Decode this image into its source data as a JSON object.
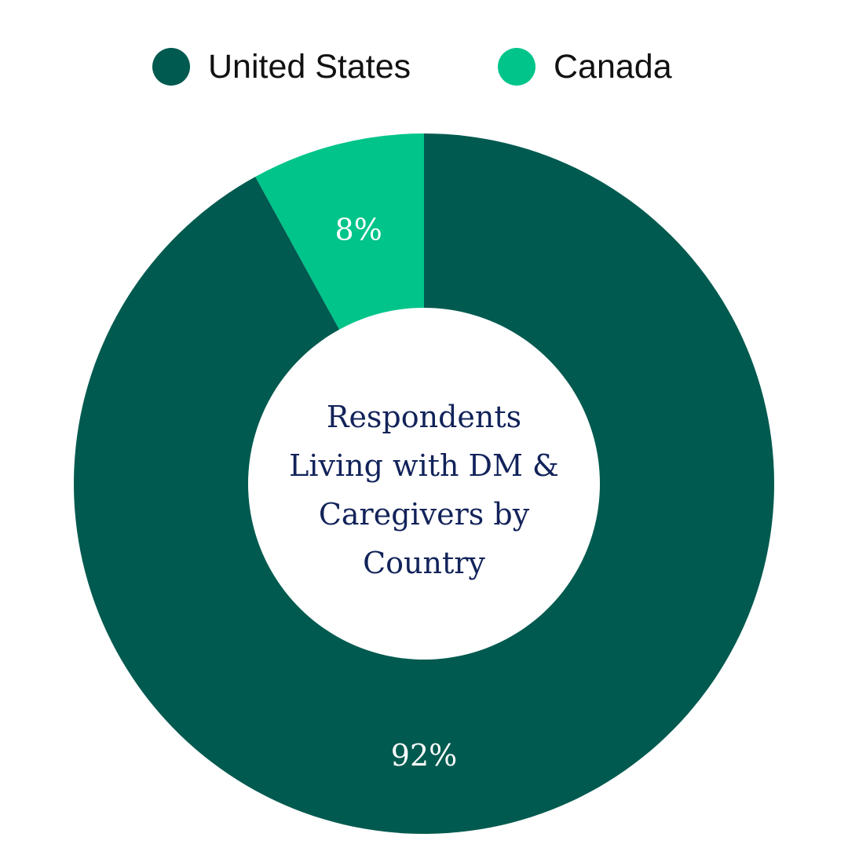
{
  "legend": {
    "items": [
      {
        "label": "United States",
        "color": "#005a4f"
      },
      {
        "label": "Canada",
        "color": "#00c48a"
      }
    ]
  },
  "chart_data": {
    "type": "pie",
    "title_lines": [
      "Respondents",
      "Living with DM &",
      "Caregivers by",
      "Country"
    ],
    "legend_position": "top",
    "slices": [
      {
        "name": "Canada",
        "value": 8,
        "label": "8%",
        "color": "#00c48a"
      },
      {
        "name": "United States",
        "value": 92,
        "label": "92%",
        "color": "#005a4f"
      }
    ]
  }
}
